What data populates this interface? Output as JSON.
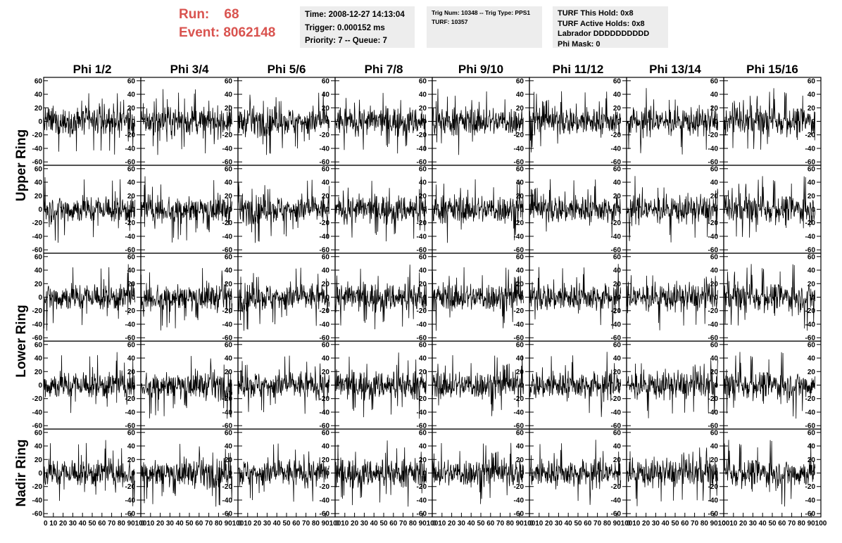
{
  "header": {
    "run_label": "Run:",
    "run_value": "68",
    "event_label": "Event:",
    "event_value": "8062148",
    "time_box": [
      "Time: 2008-12-27 14:13:04",
      "Trigger: 0.000152 ms",
      "Priority: 7 -- Queue: 7"
    ],
    "trig_box": [
      "Trig Num: 10348 -- Trig Type: PPS1",
      "",
      "TURF: 10357"
    ],
    "turf_box": [
      "TURF This Hold: 0x8",
      "TURF Active Holds: 0x8",
      "Labrador DDDDDDDDDD",
      "Phi Mask: 0"
    ]
  },
  "colors": {
    "header_accent": "#d9534f",
    "info_box_bg": "#ededed",
    "trace": "#000000"
  },
  "chart_data": {
    "type": "line",
    "title": "",
    "columns": [
      "Phi 1/2",
      "Phi 3/4",
      "Phi 5/6",
      "Phi 7/8",
      "Phi 9/10",
      "Phi 11/12",
      "Phi 13/14",
      "Phi 15/16"
    ],
    "row_groups": [
      {
        "label": "Upper Ring",
        "panels": 2
      },
      {
        "label": "Lower Ring",
        "panels": 2
      },
      {
        "label": "Nadir Ring",
        "panels": 1
      }
    ],
    "panel_rows": 5,
    "xlim": [
      0,
      100
    ],
    "ylim": [
      -65,
      65
    ],
    "x_ticks": [
      0,
      10,
      20,
      30,
      40,
      50,
      60,
      70,
      80,
      90,
      100
    ],
    "x_tick_labels": [
      "0",
      "10",
      "20",
      "30",
      "40",
      "50",
      "60",
      "70",
      "80",
      "90",
      "100"
    ],
    "last_column_x_tick_labels": [
      "0",
      "10",
      "20",
      "30",
      "40",
      "50",
      "60",
      "70",
      "80",
      "90",
      "100"
    ],
    "y_ticks": [
      -60,
      -40,
      -20,
      0,
      20,
      40,
      60
    ],
    "y_tick_labels": [
      "-60",
      "-40",
      "-20",
      "0",
      "20",
      "40",
      "60"
    ],
    "samples_per_trace": 260,
    "trace_x_range": [
      0,
      94
    ],
    "typical_amplitude": 14,
    "peak_amplitude": 50,
    "grid": false,
    "legend": "none"
  }
}
